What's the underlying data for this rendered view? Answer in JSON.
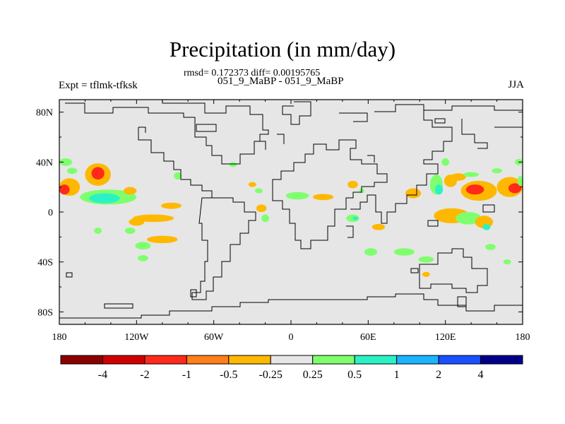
{
  "plot": {
    "title": "Precipitation (in mm/day)",
    "stats_line": "rmsd= 0.172373 diff= 0.00195765",
    "case_name": "051_9_MaBP - 051_9_MaBP",
    "left_label": "Expt = tflmk-tfksk",
    "right_label": "JJA"
  },
  "chart_data": {
    "type": "heatmap",
    "title": "Precipitation (in mm/day)",
    "subtitle": "051_9_MaBP - 051_9_MaBP",
    "stats": {
      "rmsd": 0.172373,
      "diff": 0.00195765
    },
    "season": "JJA",
    "experiment": "tflmk-tfksk",
    "xlabel": "",
    "ylabel": "",
    "xlim": [
      -180,
      180
    ],
    "ylim": [
      -90,
      90
    ],
    "x_ticks": [
      {
        "value": -180,
        "label": "180"
      },
      {
        "value": -120,
        "label": "120W"
      },
      {
        "value": -60,
        "label": "60W"
      },
      {
        "value": 0,
        "label": "0"
      },
      {
        "value": 60,
        "label": "60E"
      },
      {
        "value": 120,
        "label": "120E"
      },
      {
        "value": 180,
        "label": "180"
      }
    ],
    "y_ticks": [
      {
        "value": 80,
        "label": "80N"
      },
      {
        "value": 40,
        "label": "40N"
      },
      {
        "value": 0,
        "label": "0"
      },
      {
        "value": -40,
        "label": "40S"
      },
      {
        "value": -80,
        "label": "80S"
      }
    ],
    "colorbar": {
      "levels": [
        -4,
        -2,
        -1,
        -0.5,
        -0.25,
        0.25,
        0.5,
        1,
        2,
        4
      ],
      "level_labels": [
        "-4",
        "-2",
        "-1",
        "-0.5",
        "-0.25",
        "0.25",
        "0.5",
        "1",
        "2",
        "4"
      ],
      "colors": [
        "#8b0000",
        "#d10000",
        "#ff2a1a",
        "#ff7f1a",
        "#ffb800",
        "#e6e6e6",
        "#7fff6e",
        "#2bf2c4",
        "#1ab4ff",
        "#1a50ff",
        "#00008b"
      ],
      "background": "#e6e6e6"
    },
    "anomaly_regions": [
      {
        "lon": -172,
        "lat": 20,
        "rlon": 8,
        "rlat": 7,
        "value": -0.4
      },
      {
        "lon": -176,
        "lat": 18,
        "rlon": 4,
        "rlat": 4,
        "value": -1.5
      },
      {
        "lon": -150,
        "lat": 30,
        "rlon": 10,
        "rlat": 9,
        "value": -0.4
      },
      {
        "lon": -150,
        "lat": 31,
        "rlon": 5,
        "rlat": 5,
        "value": -1.5
      },
      {
        "lon": -142,
        "lat": 12,
        "rlon": 22,
        "rlat": 6,
        "value": 0.4
      },
      {
        "lon": -145,
        "lat": 11,
        "rlon": 12,
        "rlat": 4,
        "value": 0.8
      },
      {
        "lon": -125,
        "lat": 17,
        "rlon": 5,
        "rlat": 3,
        "value": -0.4
      },
      {
        "lon": -175,
        "lat": 40,
        "rlon": 5,
        "rlat": 3,
        "value": 0.4
      },
      {
        "lon": -170,
        "lat": 33,
        "rlon": 4,
        "rlat": 2.5,
        "value": 0.4
      },
      {
        "lon": -88,
        "lat": 29,
        "rlon": 3,
        "rlat": 3,
        "value": 0.4
      },
      {
        "lon": -107,
        "lat": -5,
        "rlon": 16,
        "rlat": 3,
        "value": -0.4
      },
      {
        "lon": -120,
        "lat": -8,
        "rlon": 6,
        "rlat": 3,
        "value": -0.4
      },
      {
        "lon": -125,
        "lat": -15,
        "rlon": 4,
        "rlat": 2.5,
        "value": 0.4
      },
      {
        "lon": -115,
        "lat": -27,
        "rlon": 6,
        "rlat": 3,
        "value": 0.4
      },
      {
        "lon": -100,
        "lat": -22,
        "rlon": 12,
        "rlat": 3,
        "value": -0.4
      },
      {
        "lon": -93,
        "lat": 5,
        "rlon": 8,
        "rlat": 2.5,
        "value": -0.4
      },
      {
        "lon": -150,
        "lat": -15,
        "rlon": 3,
        "rlat": 2.5,
        "value": 0.4
      },
      {
        "lon": -115,
        "lat": -37,
        "rlon": 4,
        "rlat": 2.5,
        "value": 0.4
      },
      {
        "lon": -23,
        "lat": 3,
        "rlon": 4,
        "rlat": 3,
        "value": -0.4
      },
      {
        "lon": -20,
        "lat": -5,
        "rlon": 3,
        "rlat": 3,
        "value": 0.4
      },
      {
        "lon": -25,
        "lat": 17,
        "rlon": 3,
        "rlat": 2,
        "value": 0.4
      },
      {
        "lon": -30,
        "lat": 22,
        "rlon": 3,
        "rlat": 2,
        "value": -0.4
      },
      {
        "lon": -45,
        "lat": 38,
        "rlon": 3,
        "rlat": 2,
        "value": 0.4
      },
      {
        "lon": 5,
        "lat": 13,
        "rlon": 9,
        "rlat": 3,
        "value": 0.4
      },
      {
        "lon": 25,
        "lat": 12,
        "rlon": 8,
        "rlat": 2.5,
        "value": -0.4
      },
      {
        "lon": 48,
        "lat": 22,
        "rlon": 4,
        "rlat": 3,
        "value": -0.4
      },
      {
        "lon": 55,
        "lat": 17,
        "rlon": 2,
        "rlat": 2,
        "value": 0.4
      },
      {
        "lon": 48,
        "lat": -5,
        "rlon": 5,
        "rlat": 3,
        "value": 0.4
      },
      {
        "lon": 50,
        "lat": -5,
        "rlon": 2,
        "rlat": 1.5,
        "value": 0.8
      },
      {
        "lon": 68,
        "lat": -12,
        "rlon": 5,
        "rlat": 2.5,
        "value": -0.4
      },
      {
        "lon": 62,
        "lat": -32,
        "rlon": 5,
        "rlat": 3,
        "value": 0.4
      },
      {
        "lon": 88,
        "lat": -32,
        "rlon": 8,
        "rlat": 3,
        "value": 0.4
      },
      {
        "lon": 105,
        "lat": -38,
        "rlon": 6,
        "rlat": 2.5,
        "value": 0.4
      },
      {
        "lon": 105,
        "lat": -50,
        "rlon": 3,
        "rlat": 2,
        "value": -0.4
      },
      {
        "lon": 95,
        "lat": 15,
        "rlon": 6,
        "rlat": 4,
        "value": -0.4
      },
      {
        "lon": 113,
        "lat": 22,
        "rlon": 5,
        "rlat": 8,
        "value": 0.4
      },
      {
        "lon": 115,
        "lat": 18,
        "rlon": 3,
        "rlat": 4,
        "value": 0.8
      },
      {
        "lon": 124,
        "lat": 25,
        "rlon": 5,
        "rlat": 5,
        "value": -0.4
      },
      {
        "lon": 130,
        "lat": 28,
        "rlon": 6,
        "rlat": 3,
        "value": -0.4
      },
      {
        "lon": 120,
        "lat": 40,
        "rlon": 3,
        "rlat": 3,
        "value": 0.4
      },
      {
        "lon": 146,
        "lat": 17,
        "rlon": 14,
        "rlat": 8,
        "value": -0.4
      },
      {
        "lon": 143,
        "lat": 18,
        "rlon": 7,
        "rlat": 4,
        "value": -1.5
      },
      {
        "lon": 170,
        "lat": 20,
        "rlon": 10,
        "rlat": 8,
        "value": -0.4
      },
      {
        "lon": 174,
        "lat": 19,
        "rlon": 5,
        "rlat": 4,
        "value": -1.5
      },
      {
        "lon": 125,
        "lat": -3,
        "rlon": 14,
        "rlat": 6,
        "value": -0.4
      },
      {
        "lon": 138,
        "lat": -5,
        "rlon": 10,
        "rlat": 5,
        "value": 0.4
      },
      {
        "lon": 150,
        "lat": -8,
        "rlon": 7,
        "rlat": 5,
        "value": -0.4
      },
      {
        "lon": 152,
        "lat": -12,
        "rlon": 3,
        "rlat": 2.5,
        "value": 0.8
      },
      {
        "lon": 140,
        "lat": 30,
        "rlon": 6,
        "rlat": 2,
        "value": 0.4
      },
      {
        "lon": 160,
        "lat": 33,
        "rlon": 4,
        "rlat": 2,
        "value": 0.4
      },
      {
        "lon": 177,
        "lat": 40,
        "rlon": 3,
        "rlat": 2.5,
        "value": 0.4
      },
      {
        "lon": 178,
        "lat": 25,
        "rlon": 2,
        "rlat": 4,
        "value": 0.4
      },
      {
        "lon": 155,
        "lat": -28,
        "rlon": 4,
        "rlat": 2.5,
        "value": 0.4
      },
      {
        "lon": 168,
        "lat": -40,
        "rlon": 3,
        "rlat": 2,
        "value": 0.4
      }
    ]
  }
}
